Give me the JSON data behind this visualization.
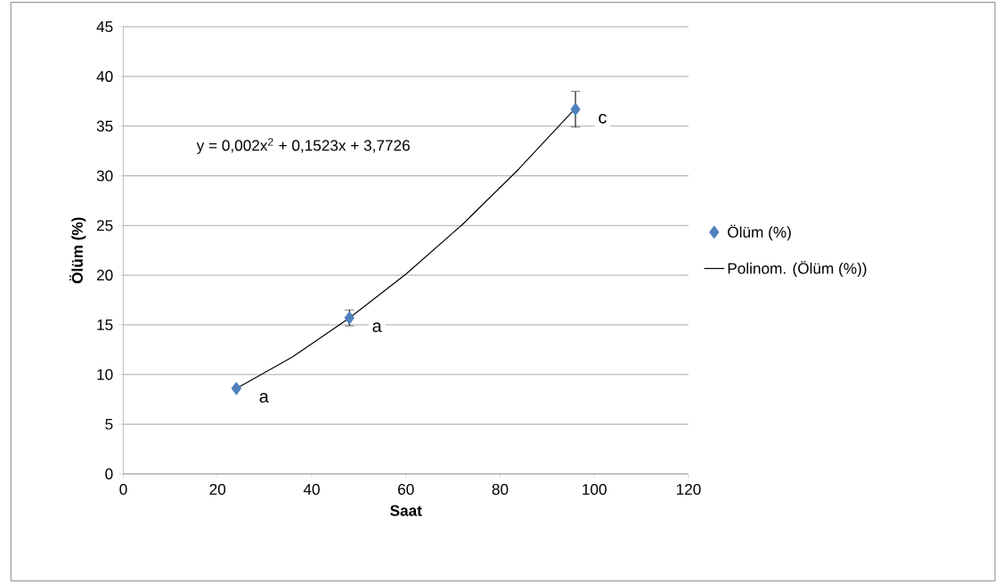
{
  "chart_data": {
    "type": "scatter",
    "xlabel": "Saat",
    "ylabel": "Ölüm (%)",
    "xlim": [
      0,
      120
    ],
    "ylim": [
      0,
      45
    ],
    "xticks": [
      0,
      20,
      40,
      60,
      80,
      100,
      120
    ],
    "yticks": [
      0,
      5,
      10,
      15,
      20,
      25,
      30,
      35,
      40,
      45
    ],
    "grid": "y",
    "legend": "right",
    "series": [
      {
        "name": "Ölüm (%)",
        "marker": "diamond",
        "color": "#4f81bd",
        "x": [
          24,
          48,
          96
        ],
        "values": [
          8.6,
          15.7,
          36.7
        ],
        "errors": [
          null,
          0.8,
          1.8
        ]
      },
      {
        "name": "Polinom. (Ölüm (%))",
        "type": "line",
        "marker": "none",
        "line_style": "solid",
        "color": "#000000",
        "x": [
          24,
          36,
          48,
          60,
          72,
          84,
          96
        ],
        "values": [
          8.6,
          11.8,
          15.7,
          20.1,
          25.1,
          30.7,
          36.8
        ]
      }
    ],
    "annotations": [
      "y = 0,002x$^{2}$ + 0,1523x + 3,7726",
      {
        "text": "a",
        "x": 24,
        "y": 8.6
      },
      {
        "text": "a",
        "x": 48,
        "y": 15.7
      },
      {
        "text": "c",
        "x": 96,
        "y": 36.7
      }
    ]
  }
}
